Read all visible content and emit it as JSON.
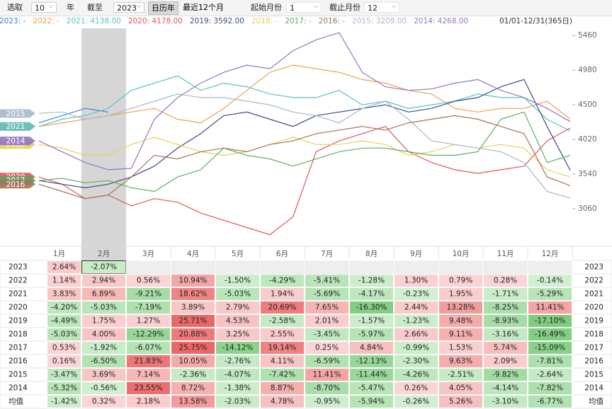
{
  "toolbar": {
    "select_label": "选取",
    "years": "10",
    "year_unit": "年",
    "until_label": "截至",
    "until_year": "2023",
    "tabs": [
      "日历年",
      "最近12个月"
    ],
    "start_month_label": "起始月份",
    "start_month": "1",
    "end_month_label": "截止月份",
    "end_month": "12"
  },
  "chart": {
    "range_label": "01/01-12/31(365日)",
    "months": [
      "1月",
      "2月",
      "3月",
      "4月",
      "5月",
      "6月",
      "7月",
      "8月",
      "9月",
      "10月",
      "11月",
      "12月"
    ],
    "highlight_month": 1,
    "ylim": [
      2540,
      5560
    ],
    "yticks": [
      3060,
      3540,
      4020,
      4500,
      4980,
      5460
    ],
    "series": [
      {
        "name": "2023",
        "legend": "2023: -",
        "color": "#3d7fd6",
        "tag": false,
        "values": [
          4250,
          4350,
          4450,
          4400,
          null,
          null,
          null,
          null,
          null,
          null,
          null,
          null,
          null,
          null,
          null,
          null,
          null,
          null,
          null,
          null,
          null,
          null,
          null,
          null
        ]
      },
      {
        "name": "2022",
        "legend": "2022: -",
        "color": "#f0a04a",
        "tag": true,
        "values": [
          4200,
          4250,
          4300,
          4350,
          4400,
          4450,
          4300,
          4250,
          4450,
          4700,
          4950,
          5050,
          5000,
          4950,
          4850,
          4800,
          4700,
          4650,
          4450,
          4400,
          4450,
          4450,
          4550,
          4300
        ]
      },
      {
        "name": "2021",
        "legend": "2021: 4138.00",
        "color": "#5cc2c2",
        "tag": true,
        "values": [
          4200,
          4300,
          4350,
          4450,
          4700,
          4800,
          4900,
          4700,
          4800,
          4750,
          4650,
          4600,
          4600,
          4700,
          4500,
          4550,
          4450,
          4500,
          4550,
          4650,
          4600,
          4600,
          4300,
          4138
        ]
      },
      {
        "name": "2020",
        "legend": "2020: 4178.00",
        "color": "#e05656",
        "tag": true,
        "values": [
          3500,
          3400,
          3200,
          3250,
          3100,
          3200,
          3150,
          3000,
          2900,
          2800,
          2700,
          2950,
          3850,
          4000,
          4100,
          4200,
          3850,
          3700,
          3600,
          3550,
          3600,
          3650,
          4000,
          4178
        ]
      },
      {
        "name": "2019",
        "legend": "2019: 3592.00",
        "color": "#3f4a86",
        "tag": true,
        "values": [
          3450,
          3400,
          3350,
          3400,
          3500,
          3650,
          3900,
          4100,
          4350,
          4400,
          4300,
          4200,
          4350,
          4400,
          4450,
          4500,
          4400,
          4450,
          4550,
          4600,
          4750,
          4850,
          4200,
          3592
        ]
      },
      {
        "name": "2018",
        "legend": "2018: -",
        "color": "#e8cf5e",
        "tag": true,
        "values": [
          3950,
          3900,
          3800,
          3800,
          3950,
          4050,
          3950,
          3850,
          3800,
          3850,
          3950,
          4050,
          3950,
          3950,
          4000,
          3950,
          3800,
          3850,
          3950,
          3900,
          3950,
          3900,
          3600,
          3500
        ]
      },
      {
        "name": "2017",
        "legend": "2017: -",
        "color": "#5fae62",
        "tag": true,
        "values": [
          3450,
          3480,
          3420,
          3450,
          3350,
          3300,
          3500,
          3600,
          3900,
          3800,
          3750,
          3650,
          3750,
          3850,
          3900,
          3900,
          3850,
          3800,
          3800,
          3850,
          4300,
          4400,
          3700,
          3800
        ]
      },
      {
        "name": "2016",
        "legend": "2016: -",
        "color": "#a27458",
        "tag": true,
        "values": [
          3400,
          3300,
          3200,
          3250,
          3500,
          3800,
          3750,
          3850,
          3900,
          3850,
          3950,
          4000,
          4100,
          4150,
          4200,
          4150,
          4250,
          4300,
          4350,
          4300,
          4200,
          4100,
          3500,
          3380
        ]
      },
      {
        "name": "2015",
        "legend": "2015: 3209.00",
        "color": "#a9b8c8",
        "tag": true,
        "values": [
          4380,
          4400,
          4300,
          4350,
          4450,
          4550,
          4650,
          4600,
          4600,
          4550,
          4500,
          4400,
          4350,
          4250,
          4450,
          4550,
          4300,
          4000,
          3950,
          3900,
          3850,
          3700,
          3300,
          3209
        ]
      },
      {
        "name": "2014",
        "legend": "2014: 4268.00",
        "color": "#9474c4",
        "tag": true,
        "values": [
          4000,
          3850,
          3700,
          3600,
          3620,
          4300,
          4600,
          4800,
          4950,
          5050,
          5000,
          5250,
          5400,
          5500,
          4950,
          4750,
          4700,
          4720,
          4800,
          4850,
          4700,
          4600,
          4450,
          4268
        ]
      }
    ]
  },
  "table": {
    "rows": [
      {
        "label": "2023",
        "cells": [
          "2.64%",
          "-2.07%",
          null,
          null,
          null,
          null,
          null,
          null,
          null,
          null,
          null,
          null
        ]
      },
      {
        "label": "2022",
        "cells": [
          "1.14%",
          "2.94%",
          "0.56%",
          "10.94%",
          "-1.50%",
          "-4.29%",
          "-5.41%",
          "-1.28%",
          "1.30%",
          "0.79%",
          "0.28%",
          "-0.14%"
        ]
      },
      {
        "label": "2021",
        "cells": [
          "3.83%",
          "6.89%",
          "-9.21%",
          "18.62%",
          "-5.03%",
          "1.94%",
          "-5.69%",
          "-4.17%",
          "-0.23%",
          "1.95%",
          "-1.71%",
          "-5.29%"
        ]
      },
      {
        "label": "2020",
        "cells": [
          "-4.20%",
          "-5.03%",
          "-7.19%",
          "3.89%",
          "2.79%",
          "20.69%",
          "7.65%",
          "-16.30%",
          "2.44%",
          "13.28%",
          "-8.25%",
          "11.41%"
        ]
      },
      {
        "label": "2019",
        "cells": [
          "-4.49%",
          "1.75%",
          "1.27%",
          "25.71%",
          "4.53%",
          "-2.58%",
          "2.01%",
          "-1.57%",
          "-1.23%",
          "9.48%",
          "-8.93%",
          "-17.10%"
        ]
      },
      {
        "label": "2018",
        "cells": [
          "-5.03%",
          "4.00%",
          "-12.29%",
          "20.88%",
          "3.25%",
          "2.55%",
          "-3.45%",
          "-5.97%",
          "2.66%",
          "9.11%",
          "-3.16%",
          "-16.49%"
        ]
      },
      {
        "label": "2017",
        "cells": [
          "0.53%",
          "-1.92%",
          "-6.07%",
          "25.75%",
          "-14.12%",
          "19.14%",
          "0.25%",
          "4.84%",
          "-0.99%",
          "1.53%",
          "5.74%",
          "-15.09%"
        ]
      },
      {
        "label": "2016",
        "cells": [
          "0.16%",
          "-6.50%",
          "21.83%",
          "10.05%",
          "-2.76%",
          "4.11%",
          "-6.59%",
          "-12.13%",
          "-2.30%",
          "9.63%",
          "2.09%",
          "-7.81%"
        ]
      },
      {
        "label": "2015",
        "cells": [
          "-3.47%",
          "3.69%",
          "7.14%",
          "-2.36%",
          "-4.07%",
          "-7.42%",
          "11.41%",
          "-11.44%",
          "-4.26%",
          "-2.51%",
          "-9.82%",
          "-2.64%"
        ]
      },
      {
        "label": "2014",
        "cells": [
          "-5.32%",
          "-0.56%",
          "23.55%",
          "8.72%",
          "-1.38%",
          "8.87%",
          "-8.70%",
          "-5.47%",
          "0.26%",
          "4.05%",
          "-4.14%",
          "-7.82%"
        ]
      },
      {
        "label": "均值",
        "cells": [
          "-1.42%",
          "0.32%",
          "2.18%",
          "13.58%",
          "-2.03%",
          "4.78%",
          "-0.95%",
          "-5.94%",
          "-0.26%",
          "5.26%",
          "-3.10%",
          "-6.77%"
        ]
      }
    ]
  }
}
